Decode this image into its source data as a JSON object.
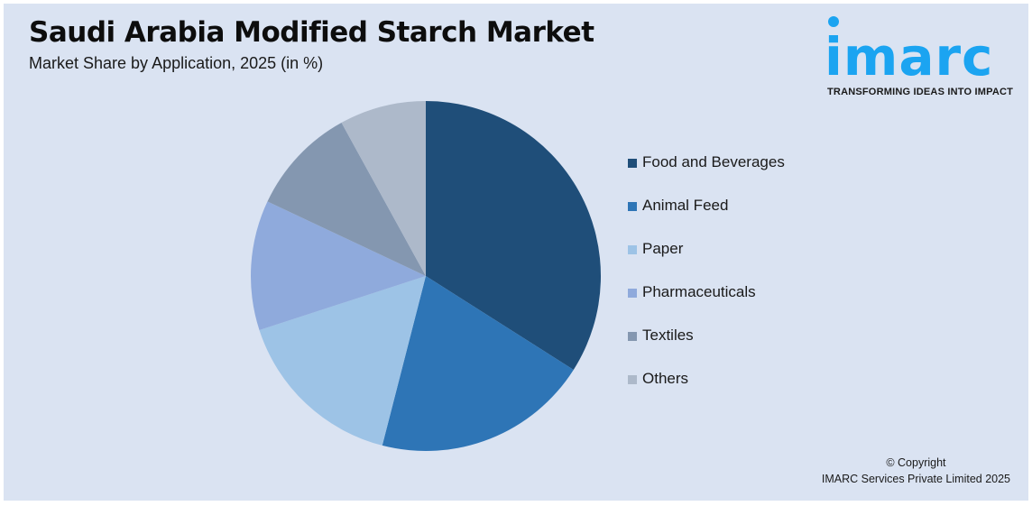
{
  "header": {
    "title": "Saudi Arabia Modified Starch Market",
    "subtitle": "Market Share by Application, 2025 (in %)"
  },
  "logo": {
    "wordmark": "imarc",
    "tagline": "TRANSFORMING IDEAS INTO IMPACT",
    "color": "#1ba4f1"
  },
  "legend": {
    "items": [
      {
        "label": "Food and Beverages",
        "color": "#1f4e79"
      },
      {
        "label": "Animal Feed",
        "color": "#2e75b6"
      },
      {
        "label": "Paper",
        "color": "#9dc3e6"
      },
      {
        "label": "Pharmaceuticals",
        "color": "#8faadc"
      },
      {
        "label": "Textiles",
        "color": "#8497b0"
      },
      {
        "label": "Others",
        "color": "#adb9ca"
      }
    ]
  },
  "footer": {
    "copyright_line1": "© Copyright",
    "copyright_line2": "IMARC Services Private Limited 2025"
  },
  "chart_data": {
    "type": "pie",
    "title": "Saudi Arabia Modified Starch Market",
    "subtitle": "Market Share by Application, 2025 (in %)",
    "categories": [
      "Food and Beverages",
      "Animal Feed",
      "Paper",
      "Pharmaceuticals",
      "Textiles",
      "Others"
    ],
    "values": [
      34,
      20,
      16,
      12,
      10,
      8
    ],
    "colors": [
      "#1f4e79",
      "#2e75b6",
      "#9dc3e6",
      "#8faadc",
      "#8497b0",
      "#adb9ca"
    ],
    "start_angle": "12 o'clock, clockwise",
    "data_labels": false,
    "legend_position": "right"
  }
}
